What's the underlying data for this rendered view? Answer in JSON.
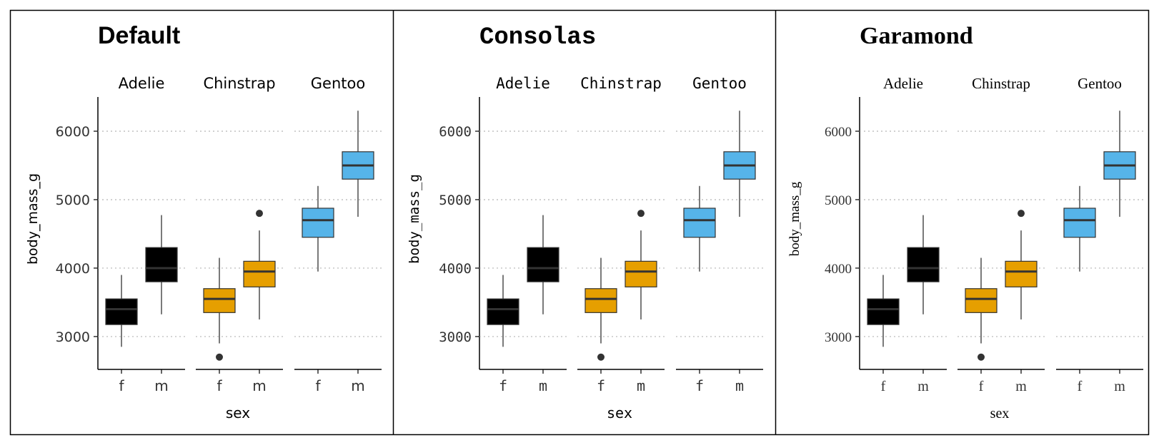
{
  "chart_data": [
    {
      "type": "boxplot",
      "title": "Default",
      "xlabel": "sex",
      "ylabel": "body_mass_g",
      "ylim": [
        2520,
        6500
      ],
      "yticks": [
        3000,
        4000,
        5000,
        6000
      ],
      "grid": "horizontal dotted",
      "facets": [
        "Adelie",
        "Chinstrap",
        "Gentoo"
      ],
      "categories": [
        "f",
        "m"
      ],
      "colors": {
        "Adelie": "#000000",
        "Chinstrap": "#E69F00",
        "Gentoo": "#56B4E9"
      },
      "boxes": [
        {
          "facet": "Adelie",
          "category": "f",
          "whisker_low": 2850,
          "q1": 3175,
          "median": 3400,
          "q3": 3550,
          "whisker_high": 3900,
          "outliers": []
        },
        {
          "facet": "Adelie",
          "category": "m",
          "whisker_low": 3325,
          "q1": 3800,
          "median": 4000,
          "q3": 4300,
          "whisker_high": 4775,
          "outliers": []
        },
        {
          "facet": "Chinstrap",
          "category": "f",
          "whisker_low": 2900,
          "q1": 3350,
          "median": 3550,
          "q3": 3700,
          "whisker_high": 4150,
          "outliers": [
            2700
          ]
        },
        {
          "facet": "Chinstrap",
          "category": "m",
          "whisker_low": 3250,
          "q1": 3725,
          "median": 3950,
          "q3": 4100,
          "whisker_high": 4550,
          "outliers": [
            4800
          ]
        },
        {
          "facet": "Gentoo",
          "category": "f",
          "whisker_low": 3950,
          "q1": 4450,
          "median": 4700,
          "q3": 4875,
          "whisker_high": 5200,
          "outliers": []
        },
        {
          "facet": "Gentoo",
          "category": "m",
          "whisker_low": 4750,
          "q1": 5300,
          "median": 5500,
          "q3": 5700,
          "whisker_high": 6300,
          "outliers": []
        }
      ]
    },
    {
      "type": "boxplot",
      "title": "Consolas",
      "xlabel": "sex",
      "ylabel": "body_mass_g",
      "ylim": [
        2520,
        6500
      ],
      "yticks": [
        3000,
        4000,
        5000,
        6000
      ],
      "grid": "horizontal dotted",
      "facets": [
        "Adelie",
        "Chinstrap",
        "Gentoo"
      ],
      "categories": [
        "f",
        "m"
      ],
      "colors": {
        "Adelie": "#000000",
        "Chinstrap": "#E69F00",
        "Gentoo": "#56B4E9"
      },
      "boxes": [
        {
          "facet": "Adelie",
          "category": "f",
          "whisker_low": 2850,
          "q1": 3175,
          "median": 3400,
          "q3": 3550,
          "whisker_high": 3900,
          "outliers": []
        },
        {
          "facet": "Adelie",
          "category": "m",
          "whisker_low": 3325,
          "q1": 3800,
          "median": 4000,
          "q3": 4300,
          "whisker_high": 4775,
          "outliers": []
        },
        {
          "facet": "Chinstrap",
          "category": "f",
          "whisker_low": 2900,
          "q1": 3350,
          "median": 3550,
          "q3": 3700,
          "whisker_high": 4150,
          "outliers": [
            2700
          ]
        },
        {
          "facet": "Chinstrap",
          "category": "m",
          "whisker_low": 3250,
          "q1": 3725,
          "median": 3950,
          "q3": 4100,
          "whisker_high": 4550,
          "outliers": [
            4800
          ]
        },
        {
          "facet": "Gentoo",
          "category": "f",
          "whisker_low": 3950,
          "q1": 4450,
          "median": 4700,
          "q3": 4875,
          "whisker_high": 5200,
          "outliers": []
        },
        {
          "facet": "Gentoo",
          "category": "m",
          "whisker_low": 4750,
          "q1": 5300,
          "median": 5500,
          "q3": 5700,
          "whisker_high": 6300,
          "outliers": []
        }
      ]
    },
    {
      "type": "boxplot",
      "title": "Garamond",
      "xlabel": "sex",
      "ylabel": "body_mass_g",
      "ylim": [
        2520,
        6500
      ],
      "yticks": [
        3000,
        4000,
        5000,
        6000
      ],
      "grid": "horizontal dotted",
      "facets": [
        "Adelie",
        "Chinstrap",
        "Gentoo"
      ],
      "categories": [
        "f",
        "m"
      ],
      "colors": {
        "Adelie": "#000000",
        "Chinstrap": "#E69F00",
        "Gentoo": "#56B4E9"
      },
      "boxes": [
        {
          "facet": "Adelie",
          "category": "f",
          "whisker_low": 2850,
          "q1": 3175,
          "median": 3400,
          "q3": 3550,
          "whisker_high": 3900,
          "outliers": []
        },
        {
          "facet": "Adelie",
          "category": "m",
          "whisker_low": 3325,
          "q1": 3800,
          "median": 4000,
          "q3": 4300,
          "whisker_high": 4775,
          "outliers": []
        },
        {
          "facet": "Chinstrap",
          "category": "f",
          "whisker_low": 2900,
          "q1": 3350,
          "median": 3550,
          "q3": 3700,
          "whisker_high": 4150,
          "outliers": [
            2700
          ]
        },
        {
          "facet": "Chinstrap",
          "category": "m",
          "whisker_low": 3250,
          "q1": 3725,
          "median": 3950,
          "q3": 4100,
          "whisker_high": 4550,
          "outliers": [
            4800
          ]
        },
        {
          "facet": "Gentoo",
          "category": "f",
          "whisker_low": 3950,
          "q1": 4450,
          "median": 4700,
          "q3": 4875,
          "whisker_high": 5200,
          "outliers": []
        },
        {
          "facet": "Gentoo",
          "category": "m",
          "whisker_low": 4750,
          "q1": 5300,
          "median": 5500,
          "q3": 5700,
          "whisker_high": 6300,
          "outliers": []
        }
      ]
    }
  ]
}
